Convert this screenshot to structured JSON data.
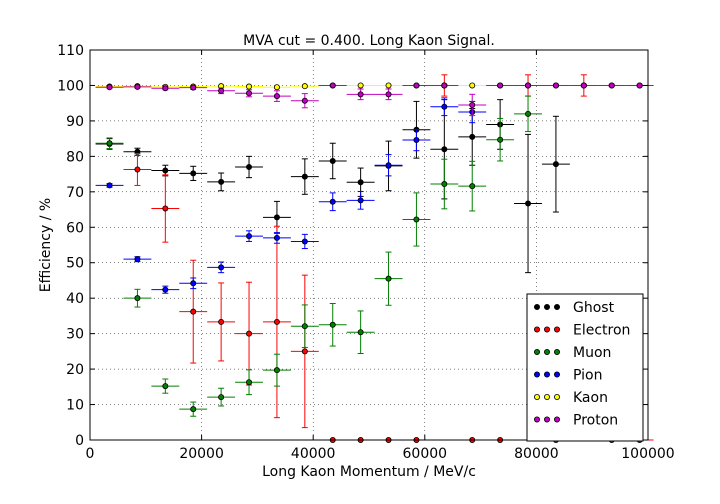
{
  "chart_data": {
    "type": "scatter",
    "title": "MVA cut = 0.400. Long Kaon Signal.",
    "xlabel": "Long Kaon Momentum / MeV/c",
    "ylabel": "Efficiency / %",
    "xlim": [
      0,
      100000
    ],
    "ylim": [
      0,
      110
    ],
    "x_ticks": [
      0,
      20000,
      40000,
      60000,
      80000,
      100000
    ],
    "y_ticks": [
      0,
      10,
      20,
      30,
      40,
      50,
      60,
      70,
      80,
      90,
      100,
      110
    ],
    "x_tick_labels": [
      "0",
      "20000",
      "40000",
      "60000",
      "80000",
      "100000"
    ],
    "y_tick_labels": [
      "0",
      "10",
      "20",
      "30",
      "40",
      "50",
      "60",
      "70",
      "80",
      "90",
      "100",
      "110"
    ],
    "grid": true,
    "legend_position": "lower-right",
    "x_bin_half_width": 2500,
    "series": [
      {
        "name": "Ghost",
        "color": "#000000",
        "points": [
          {
            "x": 3500,
            "y": 83.5,
            "err": 1.5
          },
          {
            "x": 8500,
            "y": 81.3,
            "err": 1.0
          },
          {
            "x": 13500,
            "y": 76.0,
            "err": 1.5
          },
          {
            "x": 18500,
            "y": 75.2,
            "err": 2.0
          },
          {
            "x": 23500,
            "y": 72.8,
            "err": 2.5
          },
          {
            "x": 28500,
            "y": 77.0,
            "err": 3.0
          },
          {
            "x": 33500,
            "y": 62.8,
            "err": 4.5
          },
          {
            "x": 38500,
            "y": 74.3,
            "err": 5.0
          },
          {
            "x": 43500,
            "y": 78.7,
            "err": 5.0
          },
          {
            "x": 48500,
            "y": 72.7,
            "err": 4.0
          },
          {
            "x": 53500,
            "y": 77.3,
            "err": 7.0
          },
          {
            "x": 58500,
            "y": 87.5,
            "err": 8.0
          },
          {
            "x": 63500,
            "y": 82.0,
            "err": 14.0
          },
          {
            "x": 68500,
            "y": 85.5,
            "err": 8.0
          },
          {
            "x": 73500,
            "y": 89.0,
            "err": 7.0
          },
          {
            "x": 78500,
            "y": 66.7,
            "err": 19.5
          },
          {
            "x": 83500,
            "y": 77.8,
            "err": 13.5
          }
        ]
      },
      {
        "name": "Electron",
        "color": "#ff0000",
        "points": [
          {
            "x": 8500,
            "y": 76.3,
            "err": 4.5
          },
          {
            "x": 13500,
            "y": 65.3,
            "err": 9.5
          },
          {
            "x": 18500,
            "y": 36.2,
            "err": 14.5
          },
          {
            "x": 23500,
            "y": 33.3,
            "err": 11.0
          },
          {
            "x": 28500,
            "y": 30.0,
            "err": 14.5
          },
          {
            "x": 33500,
            "y": 33.3,
            "err": 27.0
          },
          {
            "x": 38500,
            "y": 25.0,
            "err": 21.5
          },
          {
            "x": 43500,
            "y": 0.0,
            "err": 0
          },
          {
            "x": 48500,
            "y": 0.0,
            "err": 0
          },
          {
            "x": 53500,
            "y": 0.0,
            "err": 0
          },
          {
            "x": 58500,
            "y": 0.0,
            "err": 0
          },
          {
            "x": 63500,
            "y": 100.0,
            "err": 3.0
          },
          {
            "x": 68500,
            "y": 0.0,
            "err": 0
          },
          {
            "x": 73500,
            "y": 0.0,
            "err": 0
          },
          {
            "x": 78500,
            "y": 100.0,
            "err": 3.0
          },
          {
            "x": 83500,
            "y": 0.0,
            "err": 0
          },
          {
            "x": 88500,
            "y": 100.0,
            "err": 3.0
          },
          {
            "x": 93500,
            "y": 0.0,
            "err": 0
          },
          {
            "x": 98500,
            "y": 0.0,
            "err": 0
          }
        ]
      },
      {
        "name": "Muon",
        "color": "#008000",
        "points": [
          {
            "x": 3500,
            "y": 83.7,
            "err": 1.5
          },
          {
            "x": 8500,
            "y": 40.0,
            "err": 2.5
          },
          {
            "x": 13500,
            "y": 15.2,
            "err": 2.0
          },
          {
            "x": 18500,
            "y": 8.7,
            "err": 2.0
          },
          {
            "x": 23500,
            "y": 12.1,
            "err": 2.5
          },
          {
            "x": 28500,
            "y": 16.3,
            "err": 3.5
          },
          {
            "x": 33500,
            "y": 19.7,
            "err": 4.5
          },
          {
            "x": 38500,
            "y": 32.1,
            "err": 6.0
          },
          {
            "x": 43500,
            "y": 32.5,
            "err": 6.0
          },
          {
            "x": 48500,
            "y": 30.4,
            "err": 6.0
          },
          {
            "x": 53500,
            "y": 45.5,
            "err": 7.5
          },
          {
            "x": 58500,
            "y": 62.2,
            "err": 7.5
          },
          {
            "x": 63500,
            "y": 72.2,
            "err": 7.0
          },
          {
            "x": 68500,
            "y": 71.6,
            "err": 7.0
          },
          {
            "x": 73500,
            "y": 84.7,
            "err": 6.0
          },
          {
            "x": 78500,
            "y": 92.0,
            "err": 5.0
          }
        ]
      },
      {
        "name": "Pion",
        "color": "#0000ff",
        "points": [
          {
            "x": 3500,
            "y": 71.8,
            "err": 0.5
          },
          {
            "x": 8500,
            "y": 51.0,
            "err": 0.7
          },
          {
            "x": 13500,
            "y": 42.4,
            "err": 1.0
          },
          {
            "x": 18500,
            "y": 44.2,
            "err": 1.5
          },
          {
            "x": 23500,
            "y": 48.7,
            "err": 1.5
          },
          {
            "x": 28500,
            "y": 57.5,
            "err": 1.5
          },
          {
            "x": 33500,
            "y": 57.0,
            "err": 1.5
          },
          {
            "x": 38500,
            "y": 56.0,
            "err": 2.0
          },
          {
            "x": 43500,
            "y": 67.2,
            "err": 2.5
          },
          {
            "x": 48500,
            "y": 67.6,
            "err": 2.5
          },
          {
            "x": 53500,
            "y": 77.5,
            "err": 3.0
          },
          {
            "x": 58500,
            "y": 84.6,
            "err": 3.0
          },
          {
            "x": 63500,
            "y": 94.0,
            "err": 2.5
          },
          {
            "x": 68500,
            "y": 92.5,
            "err": 3.0
          }
        ]
      },
      {
        "name": "Kaon",
        "color": "#ffff00",
        "points": [
          {
            "x": 3500,
            "y": 99.7,
            "err": 0.2
          },
          {
            "x": 8500,
            "y": 99.8,
            "err": 0.2
          },
          {
            "x": 13500,
            "y": 99.6,
            "err": 0.2
          },
          {
            "x": 18500,
            "y": 99.7,
            "err": 0.2
          },
          {
            "x": 23500,
            "y": 99.8,
            "err": 0.2
          },
          {
            "x": 28500,
            "y": 99.7,
            "err": 0.2
          },
          {
            "x": 33500,
            "y": 99.5,
            "err": 0.3
          },
          {
            "x": 38500,
            "y": 99.8,
            "err": 0.2
          },
          {
            "x": 43500,
            "y": 100.0,
            "err": 0.1
          },
          {
            "x": 48500,
            "y": 100.0,
            "err": 0.1
          },
          {
            "x": 53500,
            "y": 100.0,
            "err": 0.1
          },
          {
            "x": 58500,
            "y": 100.0,
            "err": 0.1
          },
          {
            "x": 63500,
            "y": 100.0,
            "err": 0.1
          },
          {
            "x": 68500,
            "y": 100.0,
            "err": 0.1
          },
          {
            "x": 73500,
            "y": 100.0,
            "err": 0.1
          },
          {
            "x": 78500,
            "y": 100.0,
            "err": 0.1
          },
          {
            "x": 83500,
            "y": 100.0,
            "err": 0.1
          },
          {
            "x": 88500,
            "y": 100.0,
            "err": 0.1
          },
          {
            "x": 93500,
            "y": 100.0,
            "err": 0.1
          },
          {
            "x": 98500,
            "y": 100.0,
            "err": 0.1
          }
        ]
      },
      {
        "name": "Proton",
        "color": "#bf00bf",
        "points": [
          {
            "x": 3500,
            "y": 99.5,
            "err": 0.3
          },
          {
            "x": 8500,
            "y": 99.6,
            "err": 0.3
          },
          {
            "x": 13500,
            "y": 99.2,
            "err": 0.4
          },
          {
            "x": 18500,
            "y": 99.4,
            "err": 0.5
          },
          {
            "x": 23500,
            "y": 98.5,
            "err": 0.8
          },
          {
            "x": 28500,
            "y": 97.8,
            "err": 1.0
          },
          {
            "x": 33500,
            "y": 97.0,
            "err": 1.5
          },
          {
            "x": 38500,
            "y": 95.7,
            "err": 2.0
          },
          {
            "x": 43500,
            "y": 100.0,
            "err": 0.2
          },
          {
            "x": 48500,
            "y": 97.5,
            "err": 1.5
          },
          {
            "x": 53500,
            "y": 97.5,
            "err": 1.5
          },
          {
            "x": 58500,
            "y": 100.0,
            "err": 0.3
          },
          {
            "x": 63500,
            "y": 100.0,
            "err": 0.3
          },
          {
            "x": 68500,
            "y": 94.5,
            "err": 3.0
          },
          {
            "x": 73500,
            "y": 100.0,
            "err": 0.3
          },
          {
            "x": 78500,
            "y": 100.0,
            "err": 0.3
          },
          {
            "x": 83500,
            "y": 100.0,
            "err": 0.3
          },
          {
            "x": 88500,
            "y": 100.0,
            "err": 0.3
          },
          {
            "x": 93500,
            "y": 100.0,
            "err": 0.3
          },
          {
            "x": 98500,
            "y": 100.0,
            "err": 0.3
          }
        ]
      }
    ]
  }
}
